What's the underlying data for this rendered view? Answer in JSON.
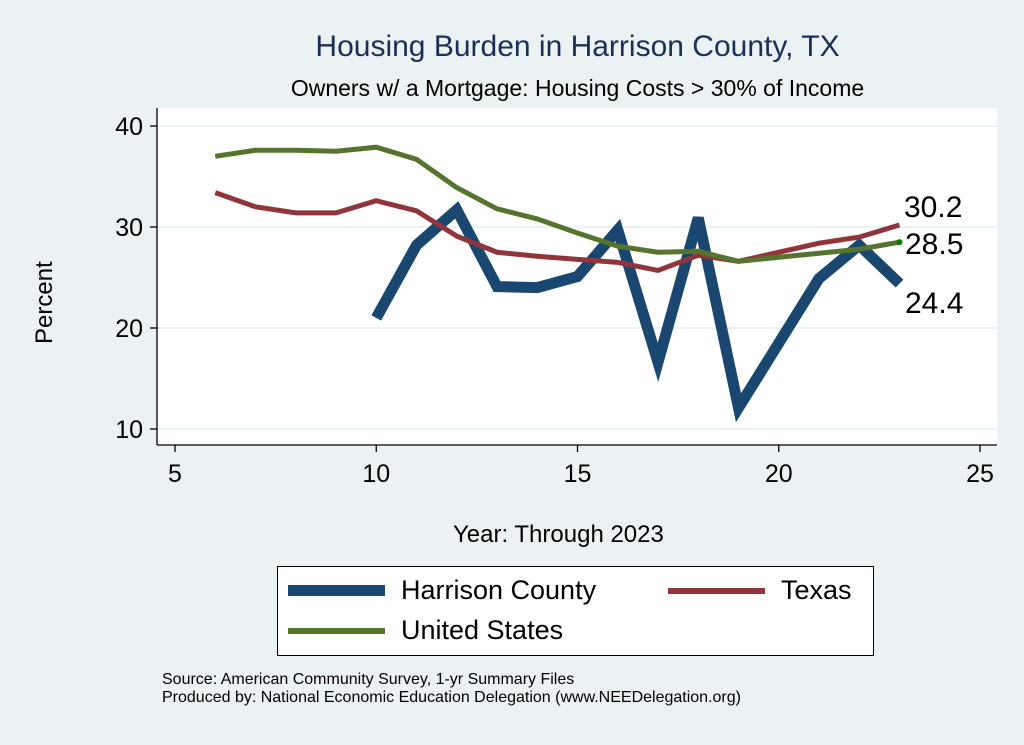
{
  "chart_data": {
    "type": "line",
    "title": "Housing Burden in Harrison County, TX",
    "subtitle": "Owners w/ a Mortgage: Housing Costs > 30% of Income",
    "xlabel": "Year: Through 2023",
    "ylabel": "Percent",
    "xlim": [
      5,
      25
    ],
    "ylim": [
      10,
      40
    ],
    "xticks": [
      5,
      10,
      15,
      20,
      25
    ],
    "yticks": [
      10,
      20,
      30,
      40
    ],
    "grid": true,
    "legend_position": "bottom",
    "series": [
      {
        "name": "Harrison County",
        "color": "#1a476f",
        "x": [
          10,
          11,
          12,
          13,
          14,
          15,
          16,
          17,
          18,
          19,
          20,
          21,
          22,
          23
        ],
        "y": [
          21.0,
          28.2,
          31.7,
          24.1,
          24.0,
          25.1,
          29.7,
          16.6,
          30.9,
          12.1,
          18.5,
          24.9,
          28.2,
          24.4
        ],
        "end_label": "24.4"
      },
      {
        "name": "Texas",
        "color": "#90353b",
        "x": [
          6,
          7,
          8,
          9,
          10,
          11,
          12,
          13,
          14,
          15,
          16,
          17,
          18,
          19,
          20,
          21,
          22,
          23
        ],
        "y": [
          33.4,
          32.0,
          31.4,
          31.4,
          32.6,
          31.6,
          29.1,
          27.5,
          27.1,
          26.8,
          26.5,
          25.7,
          27.2,
          26.6,
          27.5,
          28.4,
          29.0,
          30.2
        ],
        "end_label": "30.2"
      },
      {
        "name": "United States",
        "color": "#55752f",
        "x": [
          6,
          7,
          8,
          9,
          10,
          11,
          12,
          13,
          14,
          15,
          16,
          17,
          18,
          19,
          20,
          21,
          22,
          23
        ],
        "y": [
          37.0,
          37.6,
          37.6,
          37.5,
          37.9,
          36.7,
          33.9,
          31.8,
          30.8,
          29.4,
          28.1,
          27.5,
          27.6,
          26.6,
          27.0,
          27.4,
          27.8,
          28.5
        ],
        "end_label": "28.5"
      }
    ]
  },
  "notes": {
    "source": "Source: American Community Survey, 1-yr Summary Files",
    "produced": "Produced by: National Economic Education Delegation (www.NEEDelegation.org)"
  }
}
